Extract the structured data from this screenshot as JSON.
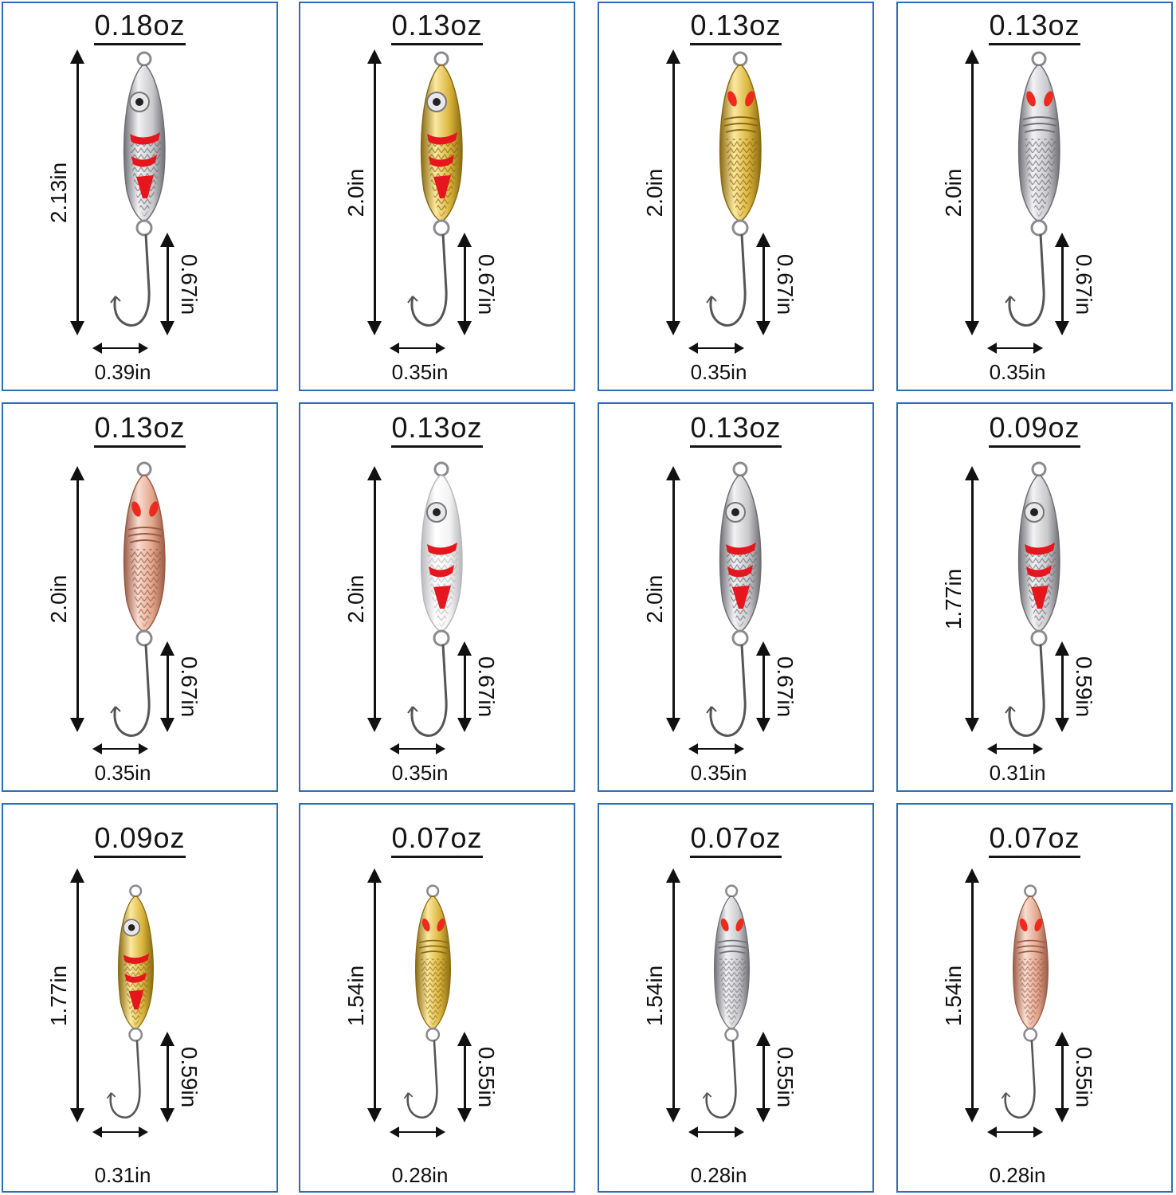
{
  "accent_border_color": "#2e6db4",
  "cards": [
    {
      "weight": "0.18oz",
      "length": "2.13in",
      "hook_length": "0.67in",
      "hook_width": "0.39in",
      "finish": "silver",
      "style": "eye-stripes"
    },
    {
      "weight": "0.13oz",
      "length": "2.0in",
      "hook_length": "0.67in",
      "hook_width": "0.35in",
      "finish": "gold",
      "style": "eye-stripes"
    },
    {
      "weight": "0.13oz",
      "length": "2.0in",
      "hook_length": "0.67in",
      "hook_width": "0.35in",
      "finish": "gold",
      "style": "scales"
    },
    {
      "weight": "0.13oz",
      "length": "2.0in",
      "hook_length": "0.67in",
      "hook_width": "0.35in",
      "finish": "silver",
      "style": "scales"
    },
    {
      "weight": "0.13oz",
      "length": "2.0in",
      "hook_length": "0.67in",
      "hook_width": "0.35in",
      "finish": "copper",
      "style": "scales"
    },
    {
      "weight": "0.13oz",
      "length": "2.0in",
      "hook_length": "0.67in",
      "hook_width": "0.35in",
      "finish": "white",
      "style": "eye-stripes"
    },
    {
      "weight": "0.13oz",
      "length": "2.0in",
      "hook_length": "0.67in",
      "hook_width": "0.35in",
      "finish": "silver",
      "style": "eye-stripes"
    },
    {
      "weight": "0.09oz",
      "length": "1.77in",
      "hook_length": "0.59in",
      "hook_width": "0.31in",
      "finish": "silver",
      "style": "eye-stripes"
    },
    {
      "weight": "0.09oz",
      "length": "1.77in",
      "hook_length": "0.59in",
      "hook_width": "0.31in",
      "finish": "gold",
      "style": "eye-stripes"
    },
    {
      "weight": "0.07oz",
      "length": "1.54in",
      "hook_length": "0.55in",
      "hook_width": "0.28in",
      "finish": "gold",
      "style": "scales"
    },
    {
      "weight": "0.07oz",
      "length": "1.54in",
      "hook_length": "0.55in",
      "hook_width": "0.28in",
      "finish": "silver",
      "style": "scales"
    },
    {
      "weight": "0.07oz",
      "length": "1.54in",
      "hook_length": "0.55in",
      "hook_width": "0.28in",
      "finish": "copper",
      "style": "scales"
    }
  ]
}
